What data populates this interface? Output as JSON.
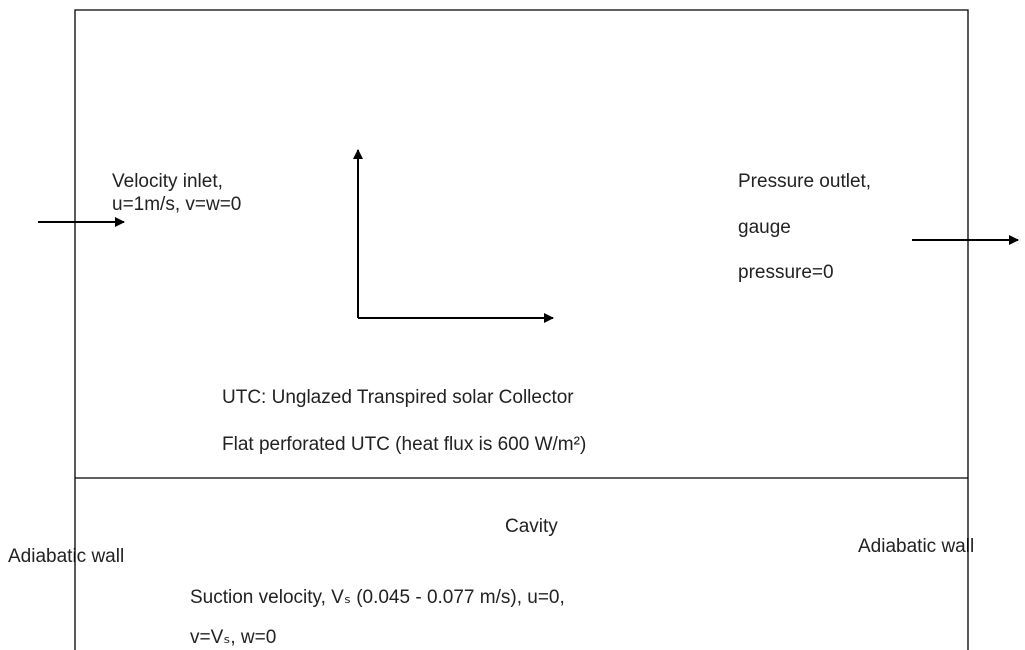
{
  "inlet": {
    "lines": [
      "Velocity inlet,",
      "u=1m/s, v=w=0"
    ]
  },
  "outlet": {
    "lines": [
      "Pressure outlet,",
      "gauge",
      "pressure=0"
    ]
  },
  "collector": {
    "definition": "UTC: Unglazed Transpired solar Collector",
    "plate": "Flat perforated UTC (heat flux is 600 W/m²)"
  },
  "cavity": {
    "label": "Cavity",
    "left_wall": "Adiabatic wall",
    "right_wall": "Adiabatic wall",
    "suction": [
      "Suction velocity, Vₛ (0.045 - 0.077 m/s), u=0,",
      "v=Vₛ, w=0"
    ]
  }
}
